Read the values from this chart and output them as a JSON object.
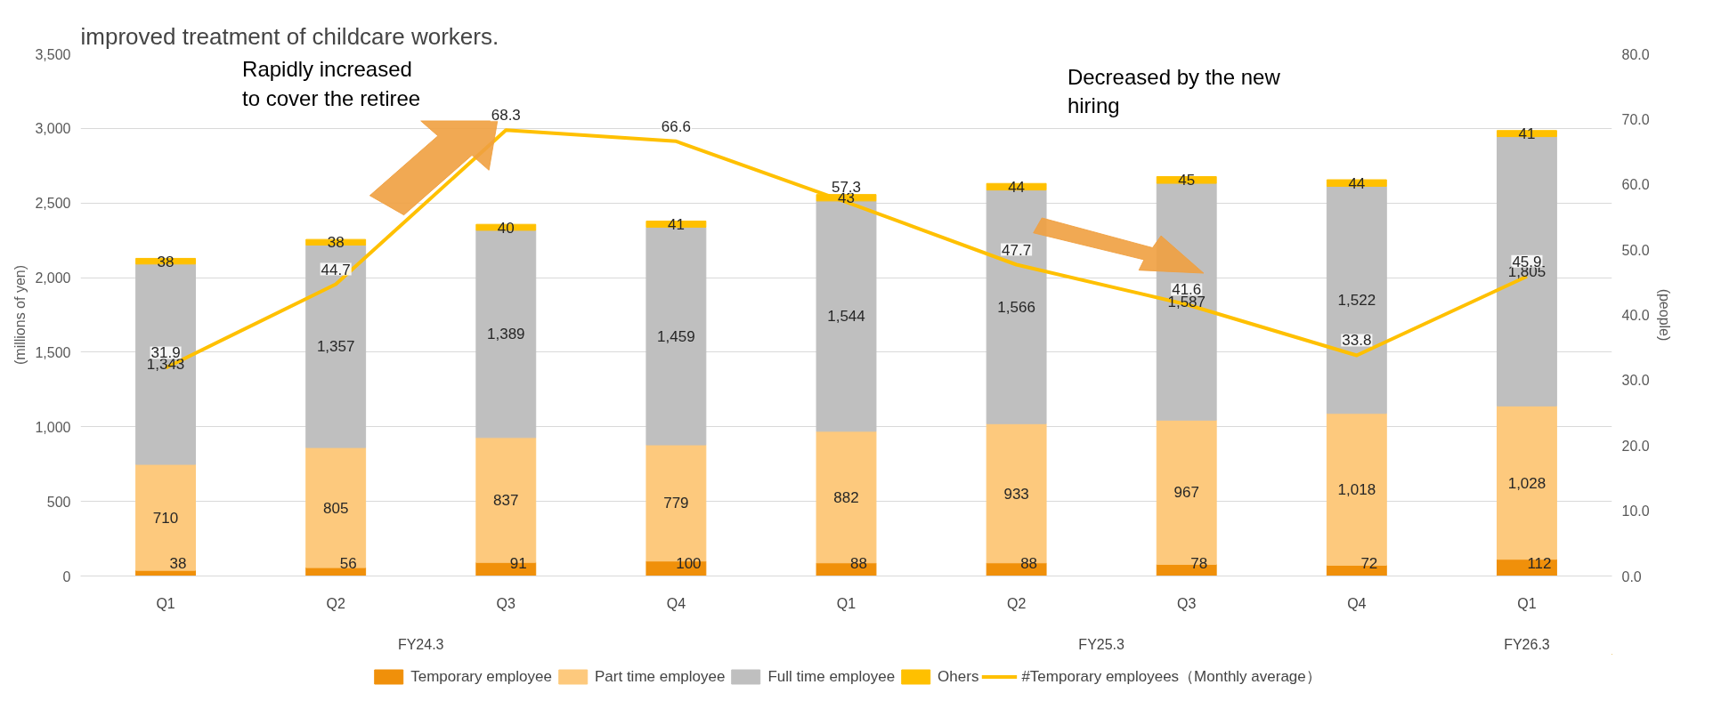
{
  "chart_data": {
    "type": "bar",
    "stacked": true,
    "title": "improved treatment of childcare workers.",
    "ylabel": "(millions of yen)",
    "y2label": "(people)",
    "categories": [
      "Q1",
      "Q2",
      "Q3",
      "Q4",
      "Q1",
      "Q2",
      "Q3",
      "Q4",
      "Q1"
    ],
    "series": [
      {
        "name": "Temporary employee",
        "color": "#f0900a",
        "values": [
          38,
          56,
          91,
          100,
          88,
          88,
          78,
          72,
          112
        ]
      },
      {
        "name": "Part time employee",
        "color": "#fdc97d",
        "values": [
          710,
          805,
          837,
          779,
          882,
          933,
          967,
          1018,
          1028
        ],
        "value_labels": [
          "710",
          "805",
          "837",
          "779",
          "882",
          "933",
          "967",
          "1,018",
          "1,028"
        ]
      },
      {
        "name": "Full time employee",
        "color": "#bfbfbf",
        "values": [
          1343,
          1357,
          1389,
          1459,
          1544,
          1566,
          1587,
          1522,
          1805
        ],
        "value_labels": [
          "1,343",
          "1,357",
          "1,389",
          "1,459",
          "1,544",
          "1,566",
          "1,587",
          "1,522",
          "1,805"
        ]
      },
      {
        "name": "Ohers",
        "color": "#ffc000",
        "values": [
          38,
          38,
          40,
          41,
          43,
          44,
          45,
          44,
          41
        ]
      },
      {
        "name": "#Temporary employees（Monthly average）",
        "type": "line",
        "axis": "y2",
        "color": "#ffc000",
        "values": [
          31.9,
          44.7,
          68.3,
          66.6,
          57.3,
          47.7,
          41.6,
          33.8,
          45.9
        ]
      }
    ],
    "ylim": [
      0,
      3500
    ],
    "yticks": [
      0,
      {
        "value": 500,
        "label": "500"
      },
      {
        "value": 1000,
        "label": "1,000"
      },
      {
        "value": 1500,
        "label": "1,500"
      },
      {
        "value": 2000,
        "label": "2,000"
      },
      {
        "value": 2500,
        "label": "2,500"
      },
      {
        "value": 3000,
        "label": "3,000"
      },
      {
        "value": 3500,
        "label": "3,500"
      }
    ],
    "y2lim": [
      0,
      80
    ],
    "y2ticks": [
      {
        "value": 0,
        "label": "0.0"
      },
      {
        "value": 10,
        "label": "10.0"
      },
      {
        "value": 20,
        "label": "20.0"
      },
      {
        "value": 30,
        "label": "30.0"
      },
      {
        "value": 40,
        "label": "40.0"
      },
      {
        "value": 50,
        "label": "50.0"
      },
      {
        "value": 60,
        "label": "60.0"
      },
      {
        "value": 70,
        "label": "70.0"
      },
      {
        "value": 80,
        "label": "80.0"
      }
    ],
    "annotations": [
      "Rapidly increased\nto cover the retiree",
      "Decreased by the new\nhiring",
      "FY24.3",
      "FY25.3",
      "FY26.3"
    ],
    "data_labels": true,
    "grid": "y",
    "legend": "bottom",
    "marker": "none",
    "line_style": "solid"
  }
}
